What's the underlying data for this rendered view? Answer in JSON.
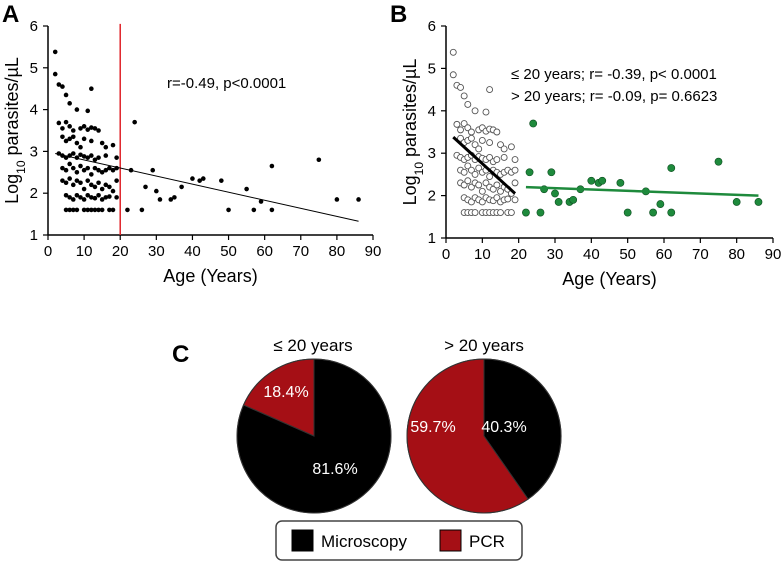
{
  "chart_data": [
    {
      "panel": "A",
      "type": "scatter",
      "xlabel": "Age (Years)",
      "ylabel_main": "Log",
      "ylabel_sub": "10",
      "ylabel_rest": " parasites/µL",
      "xlim": [
        0,
        90
      ],
      "ylim": [
        1,
        6
      ],
      "xticks": [
        0,
        10,
        20,
        30,
        40,
        50,
        60,
        70,
        80,
        90
      ],
      "yticks": [
        1,
        2,
        3,
        4,
        5,
        6
      ],
      "cutoff_x": 20,
      "cutoff_color": "#e0242a",
      "annotation": "r=-0.49, p<0.0001",
      "regression": {
        "x": [
          2,
          86
        ],
        "y": [
          2.95,
          1.33
        ]
      },
      "points": [
        [
          2,
          5.38
        ],
        [
          2,
          4.85
        ],
        [
          3,
          4.6
        ],
        [
          4,
          4.55
        ],
        [
          5,
          4.35
        ],
        [
          6,
          4.15
        ],
        [
          8,
          4.0
        ],
        [
          12,
          4.5
        ],
        [
          11,
          3.97
        ],
        [
          3,
          3.68
        ],
        [
          4,
          3.55
        ],
        [
          5,
          3.7
        ],
        [
          6,
          3.6
        ],
        [
          7,
          3.5
        ],
        [
          9,
          3.55
        ],
        [
          10,
          3.6
        ],
        [
          11,
          3.52
        ],
        [
          12,
          3.57
        ],
        [
          13,
          3.55
        ],
        [
          14,
          3.5
        ],
        [
          4,
          3.35
        ],
        [
          5,
          3.25
        ],
        [
          6,
          3.3
        ],
        [
          7,
          3.35
        ],
        [
          8,
          3.2
        ],
        [
          9,
          3.1
        ],
        [
          10,
          3.3
        ],
        [
          12,
          3.25
        ],
        [
          15,
          3.2
        ],
        [
          16,
          3.1
        ],
        [
          18,
          3.15
        ],
        [
          3,
          2.95
        ],
        [
          4,
          2.9
        ],
        [
          5,
          2.85
        ],
        [
          6,
          2.9
        ],
        [
          7,
          2.95
        ],
        [
          8,
          2.85
        ],
        [
          9,
          2.92
        ],
        [
          10,
          2.88
        ],
        [
          11,
          2.85
        ],
        [
          12,
          2.9
        ],
        [
          13,
          2.8
        ],
        [
          14,
          2.85
        ],
        [
          16,
          2.9
        ],
        [
          19,
          2.85
        ],
        [
          4,
          2.6
        ],
        [
          5,
          2.55
        ],
        [
          6,
          2.7
        ],
        [
          7,
          2.6
        ],
        [
          8,
          2.5
        ],
        [
          9,
          2.65
        ],
        [
          10,
          2.55
        ],
        [
          11,
          2.6
        ],
        [
          12,
          2.45
        ],
        [
          13,
          2.6
        ],
        [
          14,
          2.55
        ],
        [
          15,
          2.5
        ],
        [
          16,
          2.55
        ],
        [
          17,
          2.6
        ],
        [
          18,
          2.55
        ],
        [
          19,
          2.6
        ],
        [
          4,
          2.3
        ],
        [
          5,
          2.25
        ],
        [
          6,
          2.35
        ],
        [
          7,
          2.2
        ],
        [
          8,
          2.3
        ],
        [
          9,
          2.25
        ],
        [
          10,
          2.1
        ],
        [
          11,
          2.3
        ],
        [
          12,
          2.2
        ],
        [
          13,
          2.15
        ],
        [
          14,
          2.25
        ],
        [
          15,
          2.1
        ],
        [
          16,
          2.2
        ],
        [
          17,
          2.15
        ],
        [
          18,
          2.05
        ],
        [
          19,
          2.3
        ],
        [
          5,
          1.95
        ],
        [
          6,
          1.9
        ],
        [
          7,
          1.85
        ],
        [
          8,
          1.95
        ],
        [
          9,
          1.9
        ],
        [
          10,
          1.85
        ],
        [
          11,
          1.95
        ],
        [
          12,
          1.9
        ],
        [
          13,
          1.88
        ],
        [
          14,
          1.95
        ],
        [
          15,
          1.85
        ],
        [
          16,
          1.9
        ],
        [
          17,
          1.92
        ],
        [
          19,
          1.9
        ],
        [
          5,
          1.6
        ],
        [
          6,
          1.6
        ],
        [
          7,
          1.6
        ],
        [
          8,
          1.6
        ],
        [
          10,
          1.6
        ],
        [
          11,
          1.6
        ],
        [
          12,
          1.6
        ],
        [
          13,
          1.6
        ],
        [
          14,
          1.6
        ],
        [
          15,
          1.6
        ],
        [
          17,
          1.6
        ],
        [
          18,
          1.6
        ],
        [
          24,
          3.7
        ],
        [
          23,
          2.55
        ],
        [
          29,
          2.55
        ],
        [
          27,
          2.15
        ],
        [
          30,
          2.05
        ],
        [
          31,
          1.85
        ],
        [
          34,
          1.85
        ],
        [
          35,
          1.9
        ],
        [
          37,
          2.15
        ],
        [
          40,
          2.35
        ],
        [
          42,
          2.3
        ],
        [
          43,
          2.35
        ],
        [
          48,
          2.3
        ],
        [
          50,
          1.6
        ],
        [
          55,
          2.1
        ],
        [
          57,
          1.6
        ],
        [
          59,
          1.8
        ],
        [
          62,
          1.6
        ],
        [
          62,
          2.65
        ],
        [
          75,
          2.8
        ],
        [
          80,
          1.85
        ],
        [
          86,
          1.85
        ],
        [
          26,
          1.6
        ],
        [
          22,
          1.6
        ]
      ]
    },
    {
      "panel": "B",
      "type": "scatter",
      "xlabel": "Age (Years)",
      "ylabel_main": "Log",
      "ylabel_sub": "10",
      "ylabel_rest": " parasites/µL",
      "xlim": [
        0,
        90
      ],
      "ylim": [
        1,
        6
      ],
      "xticks": [
        0,
        10,
        20,
        30,
        40,
        50,
        60,
        70,
        80,
        90
      ],
      "yticks": [
        1,
        2,
        3,
        4,
        5,
        6
      ],
      "annotations": [
        "≤ 20 years; r= -0.39, p< 0.0001",
        "> 20 years; r= -0.09, p= 0.6623"
      ],
      "series": [
        {
          "name": "≤ 20 years",
          "marker": "open-circle",
          "color": "#000000",
          "regression": {
            "x": [
              2,
              19
            ],
            "y": [
              3.38,
              2.05
            ]
          },
          "points": [
            [
              2,
              5.38
            ],
            [
              2,
              4.85
            ],
            [
              3,
              4.6
            ],
            [
              4,
              4.55
            ],
            [
              5,
              4.35
            ],
            [
              6,
              4.15
            ],
            [
              8,
              4.0
            ],
            [
              12,
              4.5
            ],
            [
              11,
              3.97
            ],
            [
              3,
              3.68
            ],
            [
              4,
              3.55
            ],
            [
              5,
              3.7
            ],
            [
              6,
              3.6
            ],
            [
              7,
              3.5
            ],
            [
              9,
              3.55
            ],
            [
              10,
              3.6
            ],
            [
              11,
              3.52
            ],
            [
              12,
              3.57
            ],
            [
              13,
              3.55
            ],
            [
              14,
              3.5
            ],
            [
              4,
              3.35
            ],
            [
              5,
              3.25
            ],
            [
              6,
              3.3
            ],
            [
              7,
              3.35
            ],
            [
              8,
              3.2
            ],
            [
              9,
              3.1
            ],
            [
              10,
              3.3
            ],
            [
              12,
              3.25
            ],
            [
              15,
              3.2
            ],
            [
              16,
              3.1
            ],
            [
              18,
              3.15
            ],
            [
              3,
              2.95
            ],
            [
              4,
              2.9
            ],
            [
              5,
              2.85
            ],
            [
              6,
              2.9
            ],
            [
              7,
              2.95
            ],
            [
              8,
              2.85
            ],
            [
              9,
              2.92
            ],
            [
              10,
              2.88
            ],
            [
              11,
              2.85
            ],
            [
              12,
              2.9
            ],
            [
              13,
              2.8
            ],
            [
              14,
              2.85
            ],
            [
              16,
              2.9
            ],
            [
              19,
              2.85
            ],
            [
              4,
              2.6
            ],
            [
              5,
              2.55
            ],
            [
              6,
              2.7
            ],
            [
              7,
              2.6
            ],
            [
              8,
              2.5
            ],
            [
              9,
              2.65
            ],
            [
              10,
              2.55
            ],
            [
              11,
              2.6
            ],
            [
              12,
              2.45
            ],
            [
              13,
              2.6
            ],
            [
              14,
              2.55
            ],
            [
              15,
              2.5
            ],
            [
              16,
              2.55
            ],
            [
              17,
              2.6
            ],
            [
              18,
              2.55
            ],
            [
              19,
              2.6
            ],
            [
              4,
              2.3
            ],
            [
              5,
              2.25
            ],
            [
              6,
              2.35
            ],
            [
              7,
              2.2
            ],
            [
              8,
              2.3
            ],
            [
              9,
              2.25
            ],
            [
              10,
              2.1
            ],
            [
              11,
              2.3
            ],
            [
              12,
              2.2
            ],
            [
              13,
              2.15
            ],
            [
              14,
              2.25
            ],
            [
              15,
              2.1
            ],
            [
              16,
              2.2
            ],
            [
              17,
              2.15
            ],
            [
              18,
              2.05
            ],
            [
              19,
              2.3
            ],
            [
              5,
              1.95
            ],
            [
              6,
              1.9
            ],
            [
              7,
              1.85
            ],
            [
              8,
              1.95
            ],
            [
              9,
              1.9
            ],
            [
              10,
              1.85
            ],
            [
              11,
              1.95
            ],
            [
              12,
              1.9
            ],
            [
              13,
              1.88
            ],
            [
              14,
              1.95
            ],
            [
              15,
              1.85
            ],
            [
              16,
              1.9
            ],
            [
              17,
              1.92
            ],
            [
              19,
              1.9
            ],
            [
              5,
              1.6
            ],
            [
              6,
              1.6
            ],
            [
              7,
              1.6
            ],
            [
              8,
              1.6
            ],
            [
              10,
              1.6
            ],
            [
              11,
              1.6
            ],
            [
              12,
              1.6
            ],
            [
              13,
              1.6
            ],
            [
              14,
              1.6
            ],
            [
              15,
              1.6
            ],
            [
              17,
              1.6
            ],
            [
              18,
              1.6
            ]
          ]
        },
        {
          "name": "> 20 years",
          "marker": "filled-circle",
          "color": "#1e8a3c",
          "regression": {
            "x": [
              22,
              86
            ],
            "y": [
              2.2,
              2.0
            ]
          },
          "points": [
            [
              24,
              3.7
            ],
            [
              23,
              2.55
            ],
            [
              29,
              2.55
            ],
            [
              27,
              2.15
            ],
            [
              30,
              2.05
            ],
            [
              31,
              1.85
            ],
            [
              34,
              1.85
            ],
            [
              35,
              1.9
            ],
            [
              37,
              2.15
            ],
            [
              40,
              2.35
            ],
            [
              42,
              2.3
            ],
            [
              43,
              2.35
            ],
            [
              48,
              2.3
            ],
            [
              50,
              1.6
            ],
            [
              55,
              2.1
            ],
            [
              57,
              1.6
            ],
            [
              59,
              1.8
            ],
            [
              62,
              1.6
            ],
            [
              62,
              2.65
            ],
            [
              75,
              2.8
            ],
            [
              80,
              1.85
            ],
            [
              86,
              1.85
            ],
            [
              26,
              1.6
            ],
            [
              22,
              1.6
            ]
          ]
        }
      ]
    },
    {
      "panel": "C",
      "type": "pie",
      "title": "≤ 20 years",
      "slices": [
        {
          "label": "Microscopy",
          "value": 81.6,
          "text": "81.6%",
          "color": "#000000"
        },
        {
          "label": "PCR",
          "value": 18.4,
          "text": "18.4%",
          "color": "#a50f15"
        }
      ]
    },
    {
      "panel": "C",
      "type": "pie",
      "title": "> 20 years",
      "slices": [
        {
          "label": "Microscopy",
          "value": 40.3,
          "text": "40.3%",
          "color": "#000000"
        },
        {
          "label": "PCR",
          "value": 59.7,
          "text": "59.7%",
          "color": "#a50f15"
        }
      ]
    }
  ],
  "panel_labels": {
    "a": "A",
    "b": "B",
    "c": "C"
  },
  "legend": {
    "items": [
      {
        "label": "Microscopy",
        "color": "#000000"
      },
      {
        "label": "PCR",
        "color": "#a50f15"
      }
    ]
  }
}
